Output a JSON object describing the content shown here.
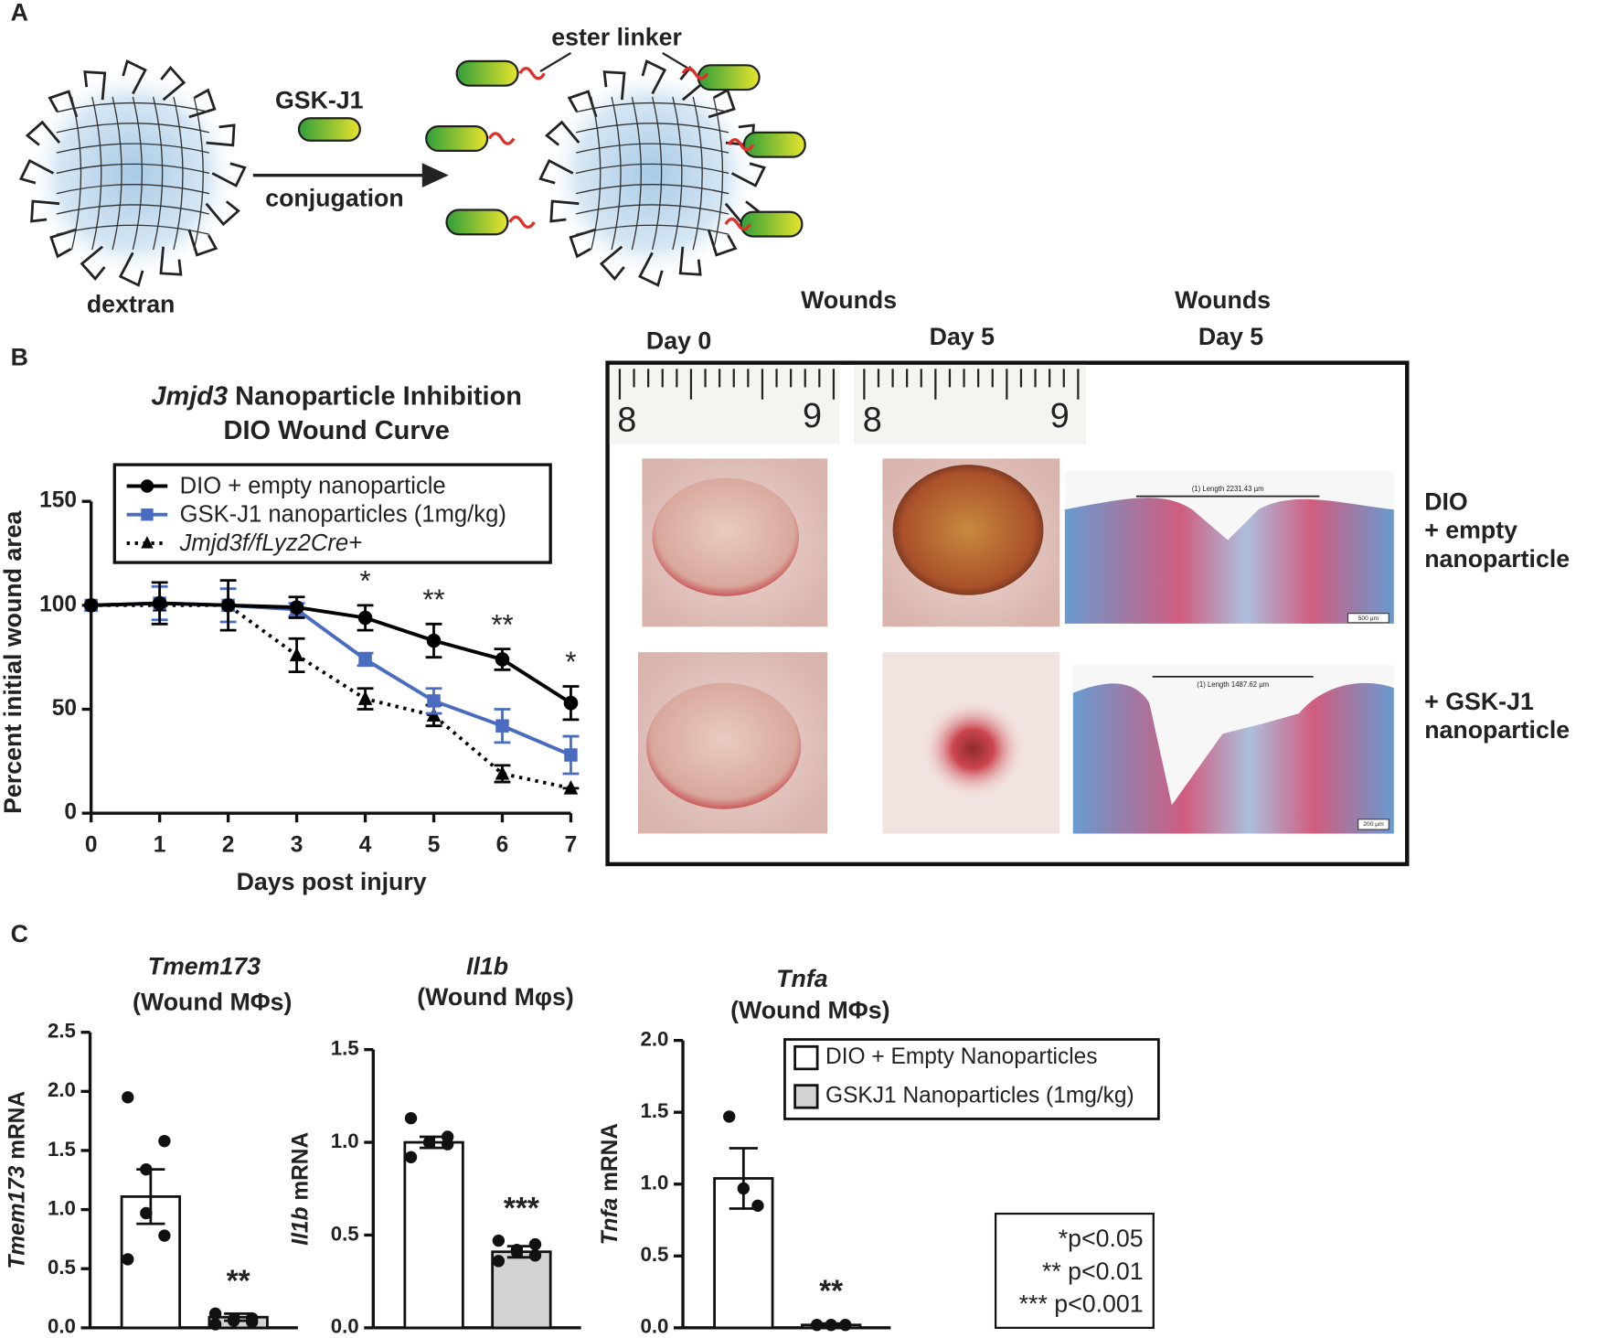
{
  "panel_labels": [
    "A",
    "B",
    "C"
  ],
  "panel_a": {
    "drug": "GSK-J1",
    "arrow_label": "conjugation",
    "linker_label": "ester linker",
    "carrier_label": "dextran"
  },
  "panel_b_images": {
    "headers": [
      "Wounds",
      "Day 0",
      "Day 5",
      "Wounds",
      "Day 5"
    ],
    "ruler_labels": [
      "8",
      "9",
      "8",
      "9"
    ],
    "rows": [
      {
        "label": [
          "DIO",
          "+ empty",
          "nanoparticle"
        ],
        "measurement": "(1) Length 2231.43 µm",
        "scale": "500 µm"
      },
      {
        "label": [
          "+ GSK-J1",
          "nanoparticle"
        ],
        "measurement": "(1) Length 1487.62 µm",
        "scale": "200 µm"
      }
    ]
  },
  "chart_data": [
    {
      "type": "line",
      "title": [
        "Jmjd3 Nanoparticle Inhibition",
        "DIO Wound Curve"
      ],
      "xlabel": "Days post injury",
      "ylabel": "Percent initial wound area",
      "x": [
        0,
        1,
        2,
        3,
        4,
        5,
        6,
        7
      ],
      "xlim": [
        0,
        7
      ],
      "xticks": [
        0,
        1,
        2,
        3,
        4,
        5,
        6,
        7
      ],
      "ylim": [
        0,
        150
      ],
      "yticks": [
        0,
        50,
        100,
        150
      ],
      "series": [
        {
          "name": "DIO + empty nanoparticle",
          "color": "#000000",
          "marker": "circle",
          "line_style": "solid",
          "values": [
            100,
            101,
            100,
            99,
            94,
            83,
            74,
            53
          ],
          "errors": [
            0,
            10,
            12,
            5,
            6,
            8,
            5,
            8
          ]
        },
        {
          "name": "GSK-J1 nanoparticles (1mg/kg)",
          "color": "#4a6cc0",
          "marker": "square",
          "line_style": "solid",
          "values": [
            100,
            101,
            100,
            98,
            74,
            54,
            42,
            28
          ],
          "errors": [
            0,
            8,
            8,
            3,
            3,
            6,
            8,
            9
          ]
        },
        {
          "name": "Jmjd3f/fLyz2Cre+",
          "color": "#000000",
          "marker": "triangle",
          "line_style": "dotted",
          "values": [
            100,
            100,
            100,
            76,
            55,
            47,
            19,
            12
          ],
          "errors": [
            0,
            0,
            0,
            8,
            5,
            5,
            4,
            0
          ]
        }
      ],
      "significance": [
        null,
        null,
        null,
        null,
        "*",
        "**",
        "**",
        "*"
      ]
    },
    {
      "type": "bar",
      "title": "Tmem173",
      "subtitle": "(Wound MΦs)",
      "ylabel": "Tmem173 mRNA",
      "ylim": [
        0,
        2.5
      ],
      "yticks": [
        {
          "value": 0,
          "label": "0.0"
        },
        0.5,
        {
          "value": 1,
          "label": "1.0"
        },
        1.5,
        {
          "value": 2,
          "label": "2.0"
        },
        2.5
      ],
      "colors": [
        "#ffffff",
        "#d3d3d3"
      ],
      "values": [
        1.11,
        0.09
      ],
      "errors": [
        0.23,
        0.03
      ],
      "points": [
        [
          1.95,
          1.58,
          1.34,
          0.97,
          0.78,
          0.58
        ],
        [
          0.12,
          0.08,
          0.07,
          0.06,
          0.05,
          0.03
        ]
      ],
      "significance": [
        null,
        "**"
      ]
    },
    {
      "type": "bar",
      "title": "Il1b",
      "subtitle": "(Wound Mφs)",
      "ylabel": "Il1b mRNA",
      "ylim": [
        0,
        1.5
      ],
      "yticks": [
        {
          "value": 0,
          "label": "0.0"
        },
        0.5,
        {
          "value": 1,
          "label": "1.0"
        },
        1.5
      ],
      "colors": [
        "#ffffff",
        "#d3d3d3"
      ],
      "values": [
        1.0,
        0.41
      ],
      "errors": [
        0.03,
        0.03
      ],
      "points": [
        [
          1.13,
          1.03,
          1.0,
          1.0,
          0.99,
          0.92
        ],
        [
          0.47,
          0.45,
          0.42,
          0.41,
          0.39,
          0.36
        ]
      ],
      "significance": [
        null,
        "***"
      ]
    },
    {
      "type": "bar",
      "title": "Tnfa",
      "subtitle": "(Wound MΦs)",
      "ylabel": "Tnfa mRNA",
      "ylim": [
        0,
        2
      ],
      "yticks": [
        {
          "value": 0,
          "label": "0.0"
        },
        0.5,
        {
          "value": 1,
          "label": "1.0"
        },
        1.5,
        {
          "value": 2,
          "label": "2.0"
        }
      ],
      "colors": [
        "#ffffff",
        "#d3d3d3"
      ],
      "values": [
        1.04,
        0.02
      ],
      "errors": [
        0.21,
        0.01
      ],
      "points": [
        [
          1.47,
          0.97,
          0.85
        ],
        [
          0.02,
          0.02,
          0.02
        ]
      ],
      "significance": [
        null,
        "**"
      ],
      "legend": [
        "DIO + Empty Nanoparticles",
        "GSKJ1 Nanoparticles (1mg/kg)"
      ]
    }
  ],
  "significance_key": [
    "*p<0.05",
    "** p<0.01",
    "*** p<0.001"
  ]
}
